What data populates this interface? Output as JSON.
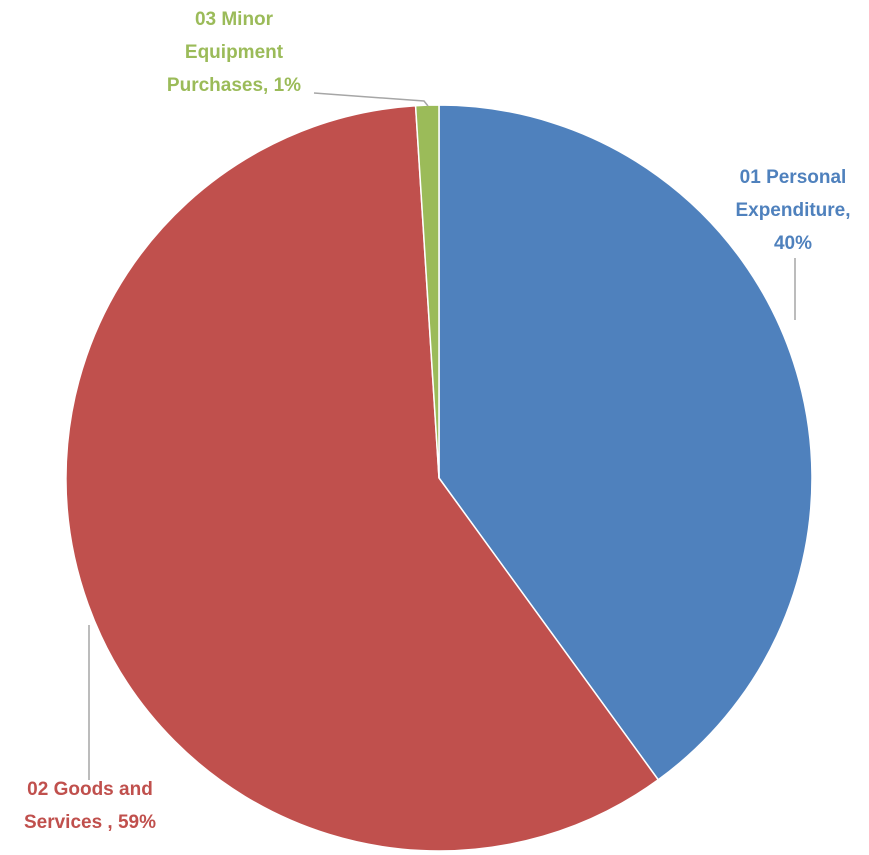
{
  "chart_data": {
    "type": "pie",
    "title": "",
    "categories": [
      "01 Personal Expenditure",
      "02 Goods and Services",
      "03 Minor Equipment Purchases"
    ],
    "values": [
      40,
      59,
      1
    ],
    "unit": "%",
    "colors": [
      "#4f81bd",
      "#c0504d",
      "#9bbb59"
    ],
    "labels": [
      {
        "lines": [
          "01 Personal",
          "Expenditure,",
          "40%"
        ]
      },
      {
        "lines": [
          "02 Goods and",
          "Services , 59%"
        ]
      },
      {
        "lines": [
          "03 Minor",
          "Equipment",
          "Purchases, 1%"
        ]
      }
    ],
    "leader_line_color": "#a6a6a6",
    "legend": "none"
  }
}
